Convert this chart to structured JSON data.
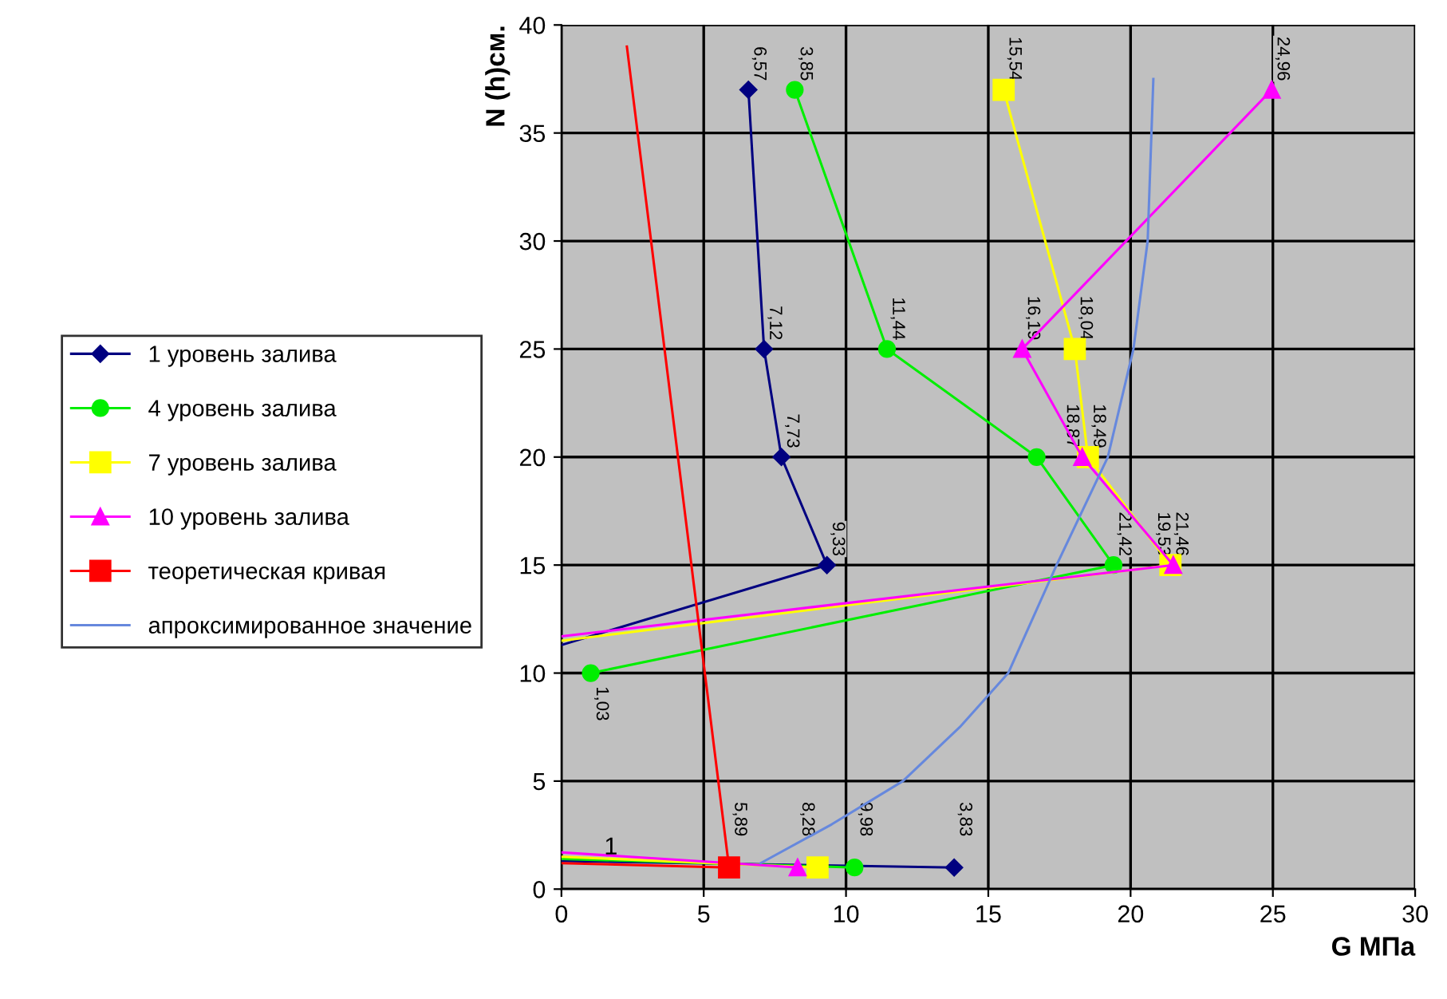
{
  "chart_data": {
    "type": "line",
    "xlabel": "G МПа",
    "ylabel": "N (h)см.",
    "xlim": [
      0,
      30
    ],
    "ylim": [
      0,
      40
    ],
    "xticks": [
      0,
      5,
      10,
      15,
      20,
      25,
      30
    ],
    "yticks": [
      0,
      5,
      10,
      15,
      20,
      25,
      30,
      35,
      40
    ],
    "grid": true,
    "legend": "left",
    "series": [
      {
        "name": "1 уровень залива",
        "color": "#000080",
        "marker": "diamond",
        "x": [
          6.57,
          7.12,
          7.73,
          9.33,
          0,
          null,
          0,
          13.8
        ],
        "values": [
          37,
          25,
          20,
          15,
          11.3,
          null,
          1.3,
          1
        ]
      },
      {
        "name": "4 уровень залива",
        "color": "#00ee00",
        "marker": "circle",
        "x": [
          8.2,
          11.44,
          16.7,
          19.4,
          1.03,
          null,
          0,
          10.3
        ],
        "values": [
          37,
          25,
          20,
          15,
          10,
          null,
          1.4,
          1
        ]
      },
      {
        "name": "7 уровень залива",
        "color": "#ffff00",
        "marker": "square",
        "x": [
          15.54,
          18.04,
          18.5,
          21.4,
          0,
          null,
          0,
          9.0
        ],
        "values": [
          37,
          25,
          20,
          15,
          11.5,
          null,
          1.5,
          1
        ]
      },
      {
        "name": "10 уровень залива",
        "color": "#ff00ff",
        "marker": "triangle",
        "x": [
          24.96,
          16.19,
          18.3,
          21.5,
          0,
          null,
          0,
          8.3
        ],
        "values": [
          37,
          25,
          20,
          15,
          11.7,
          null,
          1.7,
          1
        ]
      },
      {
        "name": "теоретическая кривая",
        "color": "#ff0000",
        "marker": "square",
        "x": [
          5.89
        ],
        "values": [
          1
        ]
      },
      {
        "color": "#ff0000",
        "marker": "none",
        "x": [
          2.3,
          5.89,
          null,
          0,
          5.89
        ],
        "values": [
          39,
          1,
          null,
          1.2,
          1
        ]
      },
      {
        "name": "апроксимированное значение",
        "color": "#6688dd",
        "marker": "none",
        "x": [
          7,
          9.5,
          12,
          14,
          15.7,
          17.4,
          19.2,
          20.1,
          20.6,
          20.8
        ],
        "values": [
          1.2,
          3,
          5,
          7.5,
          10,
          15,
          20,
          25,
          30,
          37.5
        ]
      }
    ],
    "annotations": [
      {
        "text": "6,57",
        "x": 6.57,
        "y": 37
      },
      {
        "text": "7,12",
        "x": 7.12,
        "y": 25
      },
      {
        "text": "7,73",
        "x": 7.73,
        "y": 20
      },
      {
        "text": "9,33",
        "x": 9.33,
        "y": 15
      },
      {
        "text": "3,83",
        "x": 13.8,
        "y": 1
      },
      {
        "text": "3,85",
        "x": 8.2,
        "y": 37
      },
      {
        "text": "11,44",
        "x": 11.44,
        "y": 25
      },
      {
        "text": "21,42",
        "x": 19.4,
        "y": 15
      },
      {
        "text": "1,03",
        "x": 1.03,
        "y": 10
      },
      {
        "text": "9,98",
        "x": 10.3,
        "y": 1
      },
      {
        "text": "15,54",
        "x": 15.54,
        "y": 37
      },
      {
        "text": "18,04",
        "x": 18.04,
        "y": 25
      },
      {
        "text": "18,49",
        "x": 18.5,
        "y": 20
      },
      {
        "text": "21,46",
        "x": 21.4,
        "y": 15
      },
      {
        "text": "8,28",
        "x": 9.0,
        "y": 1
      },
      {
        "text": "24,96",
        "x": 24.96,
        "y": 37
      },
      {
        "text": "16,19",
        "x": 16.19,
        "y": 25
      },
      {
        "text": "18,87",
        "x": 18.3,
        "y": 20
      },
      {
        "text": "19,53",
        "x": 21.5,
        "y": 15
      },
      {
        "text": "5,89",
        "x": 5.89,
        "y": 1
      },
      {
        "text": "1",
        "x": 1.5,
        "y": 1.2
      }
    ]
  }
}
